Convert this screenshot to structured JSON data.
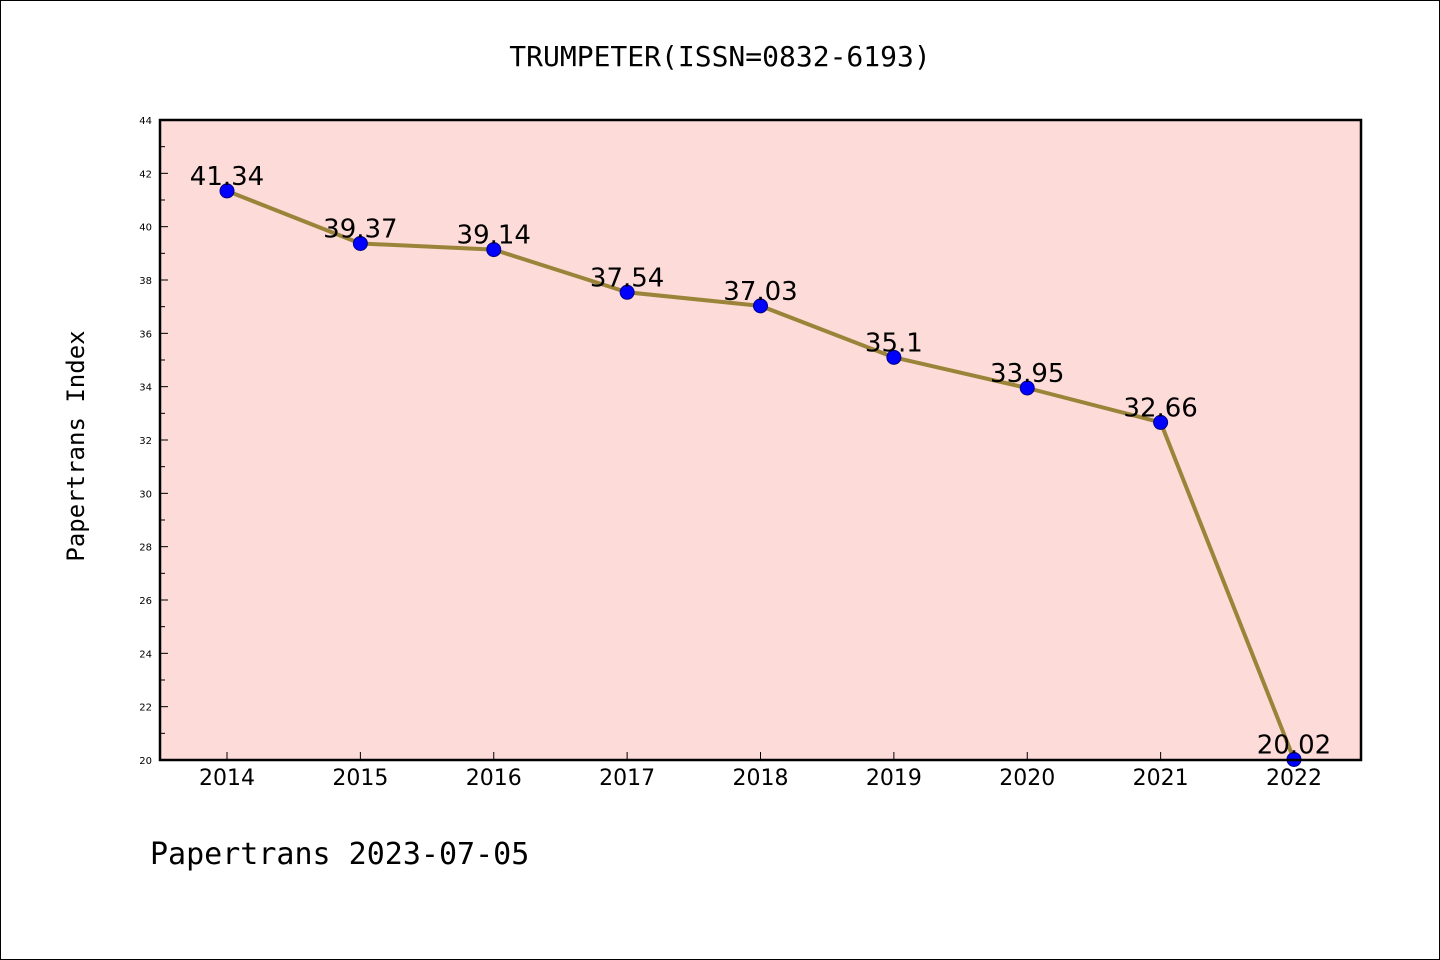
{
  "chart_data": {
    "type": "line",
    "title": "TRUMPETER(ISSN=0832-6193)",
    "ylabel": "Papertrans Index",
    "xlabel": "",
    "footer": "Papertrans 2023-07-05",
    "x": [
      "2014",
      "2015",
      "2016",
      "2017",
      "2018",
      "2019",
      "2020",
      "2021",
      "2022"
    ],
    "series": [
      {
        "values": [
          41.34,
          39.37,
          39.14,
          37.54,
          37.03,
          35.1,
          33.95,
          32.66,
          20.02
        ],
        "labels": [
          "41.34",
          "39.37",
          "39.14",
          "37.54",
          "37.03",
          "35.1",
          "33.95",
          "32.66",
          "20.02"
        ]
      }
    ],
    "ylim": [
      20,
      44
    ],
    "yticks": [
      "20",
      "22",
      "24",
      "26",
      "28",
      "30",
      "32",
      "34",
      "36",
      "38",
      "40",
      "42",
      "44"
    ],
    "grid": false,
    "colors": {
      "plot_background": "#fddbd8",
      "line": "#9b8439",
      "marker": "#0000ff",
      "marker_edge": "#000080",
      "axes": "#000000"
    }
  }
}
